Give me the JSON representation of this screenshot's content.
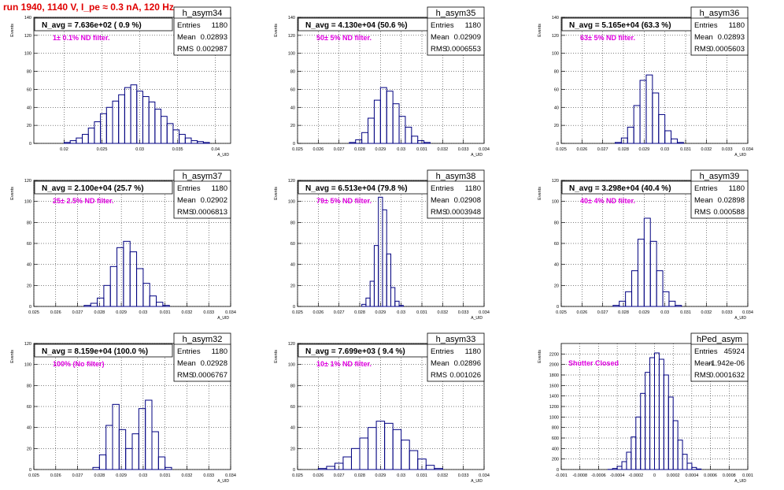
{
  "title": "run 1940,  1140 V, I_pe ≈ 0.3 nA, 120 Hz",
  "colors": {
    "title": "#e00000",
    "hist": "#000080",
    "filter_label": "#e000e0",
    "grid": "#000000"
  },
  "chart_data": [
    {
      "type": "histogram",
      "stats_name": "h_asym34",
      "entries": "1180",
      "mean": "0.02893",
      "rms": "0.002987",
      "navg": "N_avg = 7.636e+02 ( 0.9 %)",
      "filter": "1± 0.1% ND filter.",
      "ylabel": "Events",
      "xlabel": "A_UID",
      "xlim": [
        0.016,
        0.042
      ],
      "ylim": [
        0,
        140
      ],
      "xticks": [
        0.02,
        0.025,
        0.03,
        0.035,
        0.04
      ],
      "xtick_labels": [
        "0.02",
        "0.025",
        "0.03",
        "0.035",
        "0.04"
      ],
      "yticks": [
        0,
        20,
        40,
        60,
        80,
        100,
        120,
        140
      ],
      "ytick_labels": [
        "0",
        "20",
        "40",
        "60",
        "80",
        "100",
        "120",
        "140"
      ],
      "x": [
        0.02,
        0.0208,
        0.0216,
        0.0224,
        0.0232,
        0.024,
        0.0248,
        0.0256,
        0.0264,
        0.0272,
        0.028,
        0.0288,
        0.0296,
        0.0304,
        0.0312,
        0.032,
        0.0328,
        0.0336,
        0.0344,
        0.0352,
        0.036,
        0.0368,
        0.0376,
        0.0384
      ],
      "values": [
        1,
        3,
        6,
        10,
        17,
        24,
        33,
        40,
        47,
        54,
        62,
        65,
        58,
        52,
        46,
        38,
        30,
        22,
        15,
        10,
        6,
        3,
        2,
        1
      ]
    },
    {
      "type": "histogram",
      "stats_name": "h_asym35",
      "entries": "1180",
      "mean": "0.02909",
      "rms": "0.0006553",
      "navg": "N_avg = 4.130e+04 (50.6 %)",
      "filter": "50± 5% ND filter.",
      "ylabel": "Events",
      "xlabel": "A_UID",
      "xlim": [
        0.025,
        0.034
      ],
      "ylim": [
        0,
        140
      ],
      "xticks": [
        0.025,
        0.026,
        0.027,
        0.028,
        0.029,
        0.03,
        0.031,
        0.032,
        0.033,
        0.034
      ],
      "xtick_labels": [
        "0.025",
        "0.026",
        "0.027",
        "0.028",
        "0.029",
        "0.03",
        "0.031",
        "0.032",
        "0.033",
        "0.034"
      ],
      "yticks": [
        0,
        20,
        40,
        60,
        80,
        100,
        120,
        140
      ],
      "ytick_labels": [
        "0",
        "20",
        "40",
        "60",
        "80",
        "100",
        "120",
        "140"
      ],
      "x": [
        0.0275,
        0.0278,
        0.0281,
        0.0284,
        0.0287,
        0.029,
        0.0293,
        0.0296,
        0.0299,
        0.0302,
        0.0305,
        0.0308,
        0.0311
      ],
      "values": [
        1,
        4,
        12,
        28,
        48,
        62,
        58,
        44,
        30,
        18,
        8,
        3,
        1
      ]
    },
    {
      "type": "histogram",
      "stats_name": "h_asym36",
      "entries": "1180",
      "mean": "0.02893",
      "rms": "0.0005603",
      "navg": "N_avg = 5.165e+04 (63.3 %)",
      "filter": "63± 5% ND filter.",
      "ylabel": "Events",
      "xlabel": "A_UID",
      "xlim": [
        0.025,
        0.034
      ],
      "ylim": [
        0,
        140
      ],
      "xticks": [
        0.025,
        0.026,
        0.027,
        0.028,
        0.029,
        0.03,
        0.031,
        0.032,
        0.033,
        0.034
      ],
      "xtick_labels": [
        "0.025",
        "0.026",
        "0.027",
        "0.028",
        "0.029",
        "0.03",
        "0.031",
        "0.032",
        "0.033",
        "0.034"
      ],
      "yticks": [
        0,
        20,
        40,
        60,
        80,
        100,
        120,
        140
      ],
      "ytick_labels": [
        "0",
        "20",
        "40",
        "60",
        "80",
        "100",
        "120",
        "140"
      ],
      "x": [
        0.0276,
        0.0279,
        0.0282,
        0.0285,
        0.0288,
        0.0291,
        0.0294,
        0.0297,
        0.03,
        0.0303,
        0.0306
      ],
      "values": [
        1,
        6,
        18,
        42,
        70,
        76,
        56,
        32,
        14,
        5,
        1
      ]
    },
    {
      "type": "histogram",
      "stats_name": "h_asym37",
      "entries": "1180",
      "mean": "0.02902",
      "rms": "0.0006813",
      "navg": "N_avg = 2.100e+04 (25.7 %)",
      "filter": "25± 2.5% ND filter.",
      "ylabel": "Events",
      "xlabel": "A_UID",
      "xlim": [
        0.025,
        0.034
      ],
      "ylim": [
        0,
        120
      ],
      "xticks": [
        0.025,
        0.026,
        0.027,
        0.028,
        0.029,
        0.03,
        0.031,
        0.032,
        0.033,
        0.034
      ],
      "xtick_labels": [
        "0.025",
        "0.026",
        "0.027",
        "0.028",
        "0.029",
        "0.03",
        "0.031",
        "0.032",
        "0.033",
        "0.034"
      ],
      "yticks": [
        0,
        20,
        40,
        60,
        80,
        100,
        120
      ],
      "ytick_labels": [
        "0",
        "20",
        "40",
        "60",
        "80",
        "100",
        "120"
      ],
      "x": [
        0.0273,
        0.0276,
        0.0279,
        0.0282,
        0.0285,
        0.0288,
        0.0291,
        0.0294,
        0.0297,
        0.03,
        0.0303,
        0.0306,
        0.0309
      ],
      "values": [
        1,
        3,
        8,
        20,
        38,
        56,
        62,
        52,
        36,
        22,
        10,
        4,
        1
      ]
    },
    {
      "type": "histogram",
      "stats_name": "h_asym38",
      "entries": "1180",
      "mean": "0.02908",
      "rms": "0.0003948",
      "navg": "N_avg = 6.513e+04 (79.8 %)",
      "filter": "79± 5% ND filter.",
      "ylabel": "Events",
      "xlabel": "A_UID",
      "xlim": [
        0.025,
        0.034
      ],
      "ylim": [
        0,
        120
      ],
      "xticks": [
        0.025,
        0.026,
        0.027,
        0.028,
        0.029,
        0.03,
        0.031,
        0.032,
        0.033,
        0.034
      ],
      "xtick_labels": [
        "0.025",
        "0.026",
        "0.027",
        "0.028",
        "0.029",
        "0.03",
        "0.031",
        "0.032",
        "0.033",
        "0.034"
      ],
      "yticks": [
        0,
        20,
        40,
        60,
        80,
        100,
        120
      ],
      "ytick_labels": [
        "0",
        "20",
        "40",
        "60",
        "80",
        "100",
        "120"
      ],
      "x": [
        0.0281,
        0.0283,
        0.0285,
        0.0287,
        0.0289,
        0.0291,
        0.0293,
        0.0295,
        0.0297,
        0.0299
      ],
      "values": [
        2,
        8,
        24,
        58,
        104,
        92,
        50,
        18,
        5,
        1
      ]
    },
    {
      "type": "histogram",
      "stats_name": "h_asym39",
      "entries": "1180",
      "mean": "0.02898",
      "rms": "0.000588",
      "navg": "N_avg = 3.298e+04 (40.4 %)",
      "filter": "40± 4% ND filter.",
      "ylabel": "Events",
      "xlabel": "A_UID",
      "xlim": [
        0.025,
        0.034
      ],
      "ylim": [
        0,
        120
      ],
      "xticks": [
        0.025,
        0.026,
        0.027,
        0.028,
        0.029,
        0.03,
        0.031,
        0.032,
        0.033,
        0.034
      ],
      "xtick_labels": [
        "0.025",
        "0.026",
        "0.027",
        "0.028",
        "0.029",
        "0.03",
        "0.031",
        "0.032",
        "0.033",
        "0.034"
      ],
      "yticks": [
        0,
        20,
        40,
        60,
        80,
        100,
        120
      ],
      "ytick_labels": [
        "0",
        "20",
        "40",
        "60",
        "80",
        "100",
        "120"
      ],
      "x": [
        0.0275,
        0.0278,
        0.0281,
        0.0284,
        0.0287,
        0.029,
        0.0293,
        0.0296,
        0.0299,
        0.0302,
        0.0305
      ],
      "values": [
        1,
        5,
        14,
        34,
        64,
        84,
        62,
        34,
        14,
        5,
        1
      ]
    },
    {
      "type": "histogram",
      "stats_name": "h_asym32",
      "entries": "1180",
      "mean": "0.02928",
      "rms": "0.0006767",
      "navg": "N_avg = 8.159e+04 (100.0 %)",
      "filter": "100% (No filter)",
      "ylabel": "Events",
      "xlabel": "A_UID",
      "xlim": [
        0.025,
        0.034
      ],
      "ylim": [
        0,
        120
      ],
      "xticks": [
        0.025,
        0.026,
        0.027,
        0.028,
        0.029,
        0.03,
        0.031,
        0.032,
        0.033,
        0.034
      ],
      "xtick_labels": [
        "0.025",
        "0.026",
        "0.027",
        "0.028",
        "0.029",
        "0.03",
        "0.031",
        "0.032",
        "0.033",
        "0.034"
      ],
      "yticks": [
        0,
        20,
        40,
        60,
        80,
        100,
        120
      ],
      "ytick_labels": [
        "0",
        "20",
        "40",
        "60",
        "80",
        "100",
        "120"
      ],
      "x": [
        0.0277,
        0.028,
        0.0283,
        0.0286,
        0.0289,
        0.0292,
        0.0295,
        0.0298,
        0.0301,
        0.0304,
        0.0307,
        0.031
      ],
      "values": [
        2,
        14,
        42,
        62,
        38,
        20,
        34,
        58,
        66,
        36,
        12,
        2
      ]
    },
    {
      "type": "histogram",
      "stats_name": "h_asym33",
      "entries": "1180",
      "mean": "0.02896",
      "rms": "0.001026",
      "navg": "N_avg = 7.699e+03 ( 9.4 %)",
      "filter": "10± 1% ND filter.",
      "ylabel": "Events",
      "xlabel": "A_UID",
      "xlim": [
        0.025,
        0.034
      ],
      "ylim": [
        0,
        120
      ],
      "xticks": [
        0.025,
        0.026,
        0.027,
        0.028,
        0.029,
        0.03,
        0.031,
        0.032,
        0.033,
        0.034
      ],
      "xtick_labels": [
        "0.025",
        "0.026",
        "0.027",
        "0.028",
        "0.029",
        "0.03",
        "0.031",
        "0.032",
        "0.033",
        "0.034"
      ],
      "yticks": [
        0,
        20,
        40,
        60,
        80,
        100,
        120
      ],
      "ytick_labels": [
        "0",
        "20",
        "40",
        "60",
        "80",
        "100",
        "120"
      ],
      "x": [
        0.026,
        0.0264,
        0.0268,
        0.0272,
        0.0276,
        0.028,
        0.0284,
        0.0288,
        0.0292,
        0.0296,
        0.03,
        0.0304,
        0.0308,
        0.0312,
        0.0316
      ],
      "values": [
        1,
        3,
        6,
        12,
        20,
        30,
        40,
        46,
        44,
        38,
        28,
        18,
        10,
        4,
        1
      ]
    },
    {
      "type": "histogram",
      "stats_name": "hPed_asym",
      "entries": "45924",
      "mean": "-1.942e-06",
      "rms": "0.0001632",
      "navg": "",
      "filter": "Shutter Closed",
      "ylabel": "Events",
      "xlabel": "A_UID",
      "xlim": [
        -0.001,
        0.001
      ],
      "ylim": [
        0,
        2400
      ],
      "xticks": [
        -0.001,
        -0.0008,
        -0.0006,
        -0.0004,
        -0.0002,
        0,
        0.0002,
        0.0004,
        0.0006,
        0.0008,
        0.001
      ],
      "xtick_labels": [
        "-0.001",
        "-0.0008",
        "-0.0006",
        "-0.0004",
        "-0.0002",
        "0",
        "0.0002",
        "0.0004",
        "0.0006",
        "0.0008",
        "0.001"
      ],
      "yticks": [
        0,
        200,
        400,
        600,
        800,
        1000,
        1200,
        1400,
        1600,
        1800,
        2000,
        2200
      ],
      "ytick_labels": [
        "0",
        "200",
        "400",
        "600",
        "800",
        "1000",
        "1200",
        "1400",
        "1600",
        "1800",
        "2000",
        "2200"
      ],
      "x": [
        -0.0005,
        -0.00045,
        -0.0004,
        -0.00035,
        -0.0003,
        -0.00025,
        -0.0002,
        -0.00015,
        -0.0001,
        -5e-05,
        0.0,
        5e-05,
        0.0001,
        0.00015,
        0.0002,
        0.00025,
        0.0003,
        0.00035,
        0.0004,
        0.00045
      ],
      "values": [
        3,
        20,
        60,
        150,
        330,
        620,
        1000,
        1450,
        1850,
        2130,
        2220,
        2100,
        1800,
        1380,
        930,
        560,
        290,
        120,
        40,
        10
      ]
    }
  ]
}
